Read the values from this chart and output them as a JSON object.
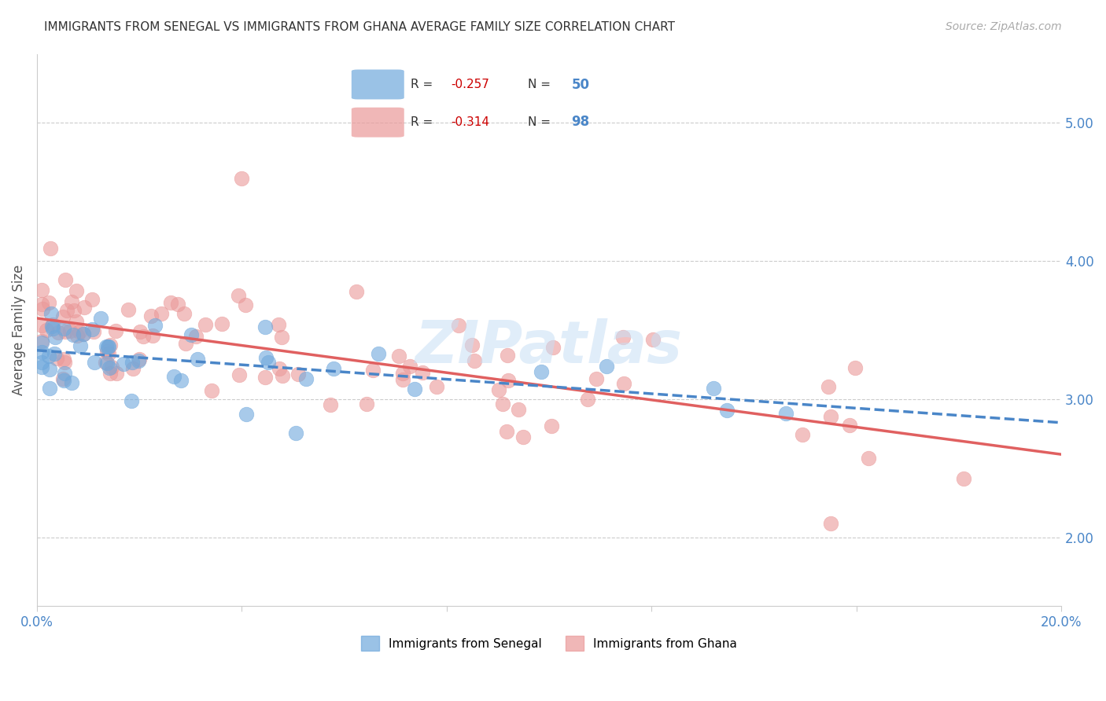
{
  "title": "IMMIGRANTS FROM SENEGAL VS IMMIGRANTS FROM GHANA AVERAGE FAMILY SIZE CORRELATION CHART",
  "source": "Source: ZipAtlas.com",
  "ylabel": "Average Family Size",
  "xlim": [
    0.0,
    0.2
  ],
  "ylim": [
    1.5,
    5.5
  ],
  "yticks_right": [
    2.0,
    3.0,
    4.0,
    5.0
  ],
  "xticks": [
    0.0,
    0.04,
    0.08,
    0.12,
    0.16,
    0.2
  ],
  "xtick_labels": [
    "0.0%",
    "",
    "",
    "",
    "",
    "20.0%"
  ],
  "watermark": "ZIPatlas",
  "senegal_color": "#6fa8dc",
  "ghana_color": "#ea9999",
  "senegal_line_color": "#4a86c8",
  "ghana_line_color": "#e06060",
  "R_senegal": -0.257,
  "N_senegal": 50,
  "R_ghana": -0.314,
  "N_ghana": 98
}
